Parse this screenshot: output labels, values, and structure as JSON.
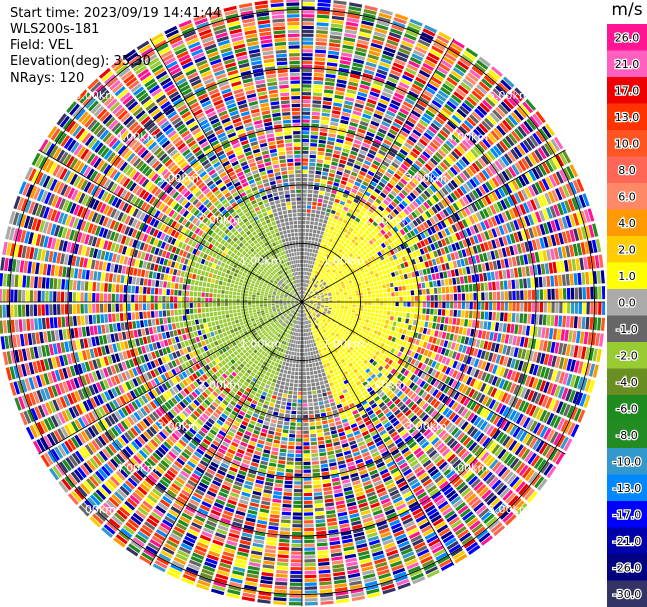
{
  "header": {
    "start_time": "Start time: 2023/09/19 14:41:44",
    "instrument": "WLS200s-181",
    "field": "Field: VEL",
    "elevation": "Elevation(deg): 35.30",
    "nrays": "NRays: 120"
  },
  "chart_data": {
    "type": "ppi-heatmap",
    "field": "VEL",
    "units": "m/s",
    "elevation_deg": 35.3,
    "nrays": 120,
    "range_rings_km": [
      1.0,
      2.0,
      3.0,
      4.0,
      5.0
    ],
    "ring_labels": [
      "1.00km",
      "2.00km",
      "3.00km",
      "4.00km",
      "5.00km"
    ],
    "max_range_km": 5.2,
    "spokes_deg": [
      0,
      30,
      60,
      90,
      120,
      150,
      180,
      210,
      240,
      270,
      300,
      330
    ],
    "coherent_region": {
      "approaching_side": "west",
      "approaching_velocity_range_ms": [
        -4.0,
        -1.0
      ],
      "receding_side": "east",
      "receding_velocity_range_ms": [
        1.0,
        4.0
      ],
      "extent_km": [
        0.2,
        2.3
      ]
    },
    "noise_region_km": [
      2.0,
      5.2
    ],
    "colorbar": {
      "title": "m/s",
      "ticks": [
        "26.0",
        "21.0",
        "17.0",
        "13.0",
        "10.0",
        "8.0",
        "6.0",
        "4.0",
        "2.0",
        "1.0",
        "0.0",
        "-1.0",
        "-2.0",
        "-4.0",
        "-6.0",
        "-8.0",
        "-10.0",
        "-13.0",
        "-17.0",
        "-21.0",
        "-26.0",
        "-30.0"
      ],
      "colors": [
        "#ff1493",
        "#ff60c0",
        "#ee0000",
        "#ff3300",
        "#ff5522",
        "#ff6655",
        "#ff8866",
        "#ff9900",
        "#ffcc00",
        "#ffff00",
        "#aaaaaa",
        "#666666",
        "#99cc33",
        "#6b8e23",
        "#1e8b1e",
        "#228b22",
        "#3399cc",
        "#0088ff",
        "#0000ff",
        "#0000aa",
        "#000080",
        "#333366"
      ]
    }
  }
}
